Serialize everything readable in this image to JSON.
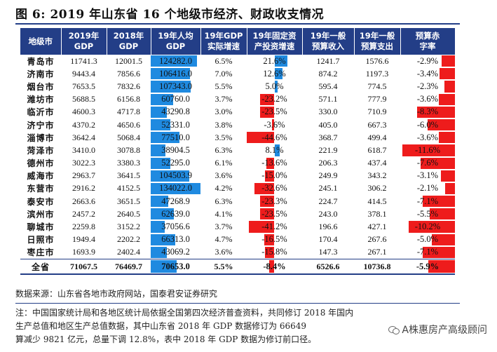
{
  "title": "图 6:  2019 年山东省 16 个地级市经济、财政收支情况",
  "headers": [
    "地级市",
    "2019年\nGDP",
    "2018年\nGDP",
    "19年人均\nGDP",
    "19年GDP\n实际增速",
    "19年固定资\n产投资增速",
    "19年一般\n预算收入",
    "19年一般\n预算支出",
    "预算赤\n字率"
  ],
  "rows": [
    {
      "city": "青岛市",
      "gdp19": "11741.3",
      "gdp18": "12001.5",
      "pc": "124282.0",
      "pc_val": 124282.0,
      "growth": "6.5%",
      "fai": "21.6%",
      "fai_val": 21.6,
      "rev": "1241.7",
      "exp": "1576.6",
      "def": "-2.9%",
      "def_val": -2.9
    },
    {
      "city": "济南市",
      "gdp19": "9443.4",
      "gdp18": "7856.6",
      "pc": "106416.0",
      "pc_val": 106416.0,
      "growth": "7.0%",
      "fai": "12.6%",
      "fai_val": 12.6,
      "rev": "874.2",
      "exp": "1197.3",
      "def": "-3.4%",
      "def_val": -3.4
    },
    {
      "city": "烟台市",
      "gdp19": "7653.5",
      "gdp18": "7832.6",
      "pc": "107343.0",
      "pc_val": 107343.0,
      "growth": "5.5%",
      "fai": "5.0%",
      "fai_val": 5.0,
      "rev": "595.4",
      "exp": "774.5",
      "def": "-2.3%",
      "def_val": -2.3
    },
    {
      "city": "潍坊市",
      "gdp19": "5688.5",
      "gdp18": "6156.8",
      "pc": "60760.0",
      "pc_val": 60760.0,
      "growth": "3.7%",
      "fai": "-23.2%",
      "fai_val": -23.2,
      "rev": "571.1",
      "exp": "777.9",
      "def": "-3.6%",
      "def_val": -3.6
    },
    {
      "city": "临沂市",
      "gdp19": "4600.3",
      "gdp18": "4717.8",
      "pc": "43290.8",
      "pc_val": 43290.8,
      "growth": "3.0%",
      "fai": "-23.5%",
      "fai_val": -23.5,
      "rev": "330.0",
      "exp": "710.9",
      "def": "-8.3%",
      "def_val": -8.3
    },
    {
      "city": "济宁市",
      "gdp19": "4370.2",
      "gdp18": "4650.6",
      "pc": "52331.0",
      "pc_val": 52331.0,
      "growth": "3.8%",
      "fai": "-3.6%",
      "fai_val": -3.6,
      "rev": "405.0",
      "exp": "667.3",
      "def": "-6.0%",
      "def_val": -6.0
    },
    {
      "city": "淄博市",
      "gdp19": "3642.4",
      "gdp18": "5068.4",
      "pc": "77510.0",
      "pc_val": 77510.0,
      "growth": "3.5%",
      "fai": "-44.6%",
      "fai_val": -44.6,
      "rev": "368.7",
      "exp": "499.4",
      "def": "-3.6%",
      "def_val": -3.6
    },
    {
      "city": "菏泽市",
      "gdp19": "3410.0",
      "gdp18": "3078.8",
      "pc": "38904.5",
      "pc_val": 38904.5,
      "growth": "6.3%",
      "fai": "8.1%",
      "fai_val": 8.1,
      "rev": "221.9",
      "exp": "618.7",
      "def": "-11.6%",
      "def_val": -11.6
    },
    {
      "city": "德州市",
      "gdp19": "3022.3",
      "gdp18": "3380.3",
      "pc": "52295.0",
      "pc_val": 52295.0,
      "growth": "6.1%",
      "fai": "-13.6%",
      "fai_val": -13.6,
      "rev": "206.3",
      "exp": "437.4",
      "def": "-7.6%",
      "def_val": -7.6
    },
    {
      "city": "威海市",
      "gdp19": "2963.7",
      "gdp18": "3641.5",
      "pc": "104503.9",
      "pc_val": 104503.9,
      "growth": "3.6%",
      "fai": "-15.0%",
      "fai_val": -15.0,
      "rev": "249.9",
      "exp": "343.2",
      "def": "-3.1%",
      "def_val": -3.1
    },
    {
      "city": "东营市",
      "gdp19": "2916.2",
      "gdp18": "4152.5",
      "pc": "134022.0",
      "pc_val": 134022.0,
      "growth": "4.2%",
      "fai": "-32.6%",
      "fai_val": -32.6,
      "rev": "245.1",
      "exp": "306.2",
      "def": "-2.1%",
      "def_val": -2.1
    },
    {
      "city": "泰安市",
      "gdp19": "2663.6",
      "gdp18": "3651.5",
      "pc": "47268.9",
      "pc_val": 47268.9,
      "growth": "6.3%",
      "fai": "-23.3%",
      "fai_val": -23.3,
      "rev": "224.7",
      "exp": "414.5",
      "def": "-7.1%",
      "def_val": -7.1
    },
    {
      "city": "滨州市",
      "gdp19": "2457.2",
      "gdp18": "2640.5",
      "pc": "62639.0",
      "pc_val": 62639.0,
      "growth": "4.1%",
      "fai": "-23.5%",
      "fai_val": -23.5,
      "rev": "243.0",
      "exp": "378.1",
      "def": "-5.5%",
      "def_val": -5.5
    },
    {
      "city": "聊城市",
      "gdp19": "2259.8",
      "gdp18": "3152.2",
      "pc": "37056.6",
      "pc_val": 37056.6,
      "growth": "3.7%",
      "fai": "-41.2%",
      "fai_val": -41.2,
      "rev": "196.6",
      "exp": "427.1",
      "def": "-10.2%",
      "def_val": -10.2
    },
    {
      "city": "日照市",
      "gdp19": "1949.4",
      "gdp18": "2202.2",
      "pc": "66313.0",
      "pc_val": 66313.0,
      "growth": "4.7%",
      "fai": "-16.5%",
      "fai_val": -16.5,
      "rev": "170.4",
      "exp": "267.6",
      "def": "-5.0%",
      "def_val": -5.0
    },
    {
      "city": "枣庄市",
      "gdp19": "1693.9",
      "gdp18": "2402.4",
      "pc": "43069.2",
      "pc_val": 43069.2,
      "growth": "3.6%",
      "fai": "-15.8%",
      "fai_val": -15.8,
      "rev": "147.3",
      "exp": "267.1",
      "def": "-7.1%",
      "def_val": -7.1
    }
  ],
  "total": {
    "city": "全省",
    "gdp19": "71067.5",
    "gdp18": "76469.7",
    "pc": "70653.0",
    "pc_val": 70653.0,
    "growth": "5.5%",
    "fai": "-8.4%",
    "fai_val": -8.4,
    "rev": "6526.6",
    "exp": "10736.8",
    "def": "-5.9%",
    "def_val": -5.9
  },
  "source": "数据来源：山东省各地市政府网站，国泰君安证券研究",
  "note_lines": [
    "注：中国国家统计局和各地区统计局依据全国第四次经济普查资料，共同修订 2018 年国内",
    "生产总值和地区生产总值数据，其中山东省 2018 年 GDP 数据修订为 66649",
    "算减少 9821 亿元，总量下调 12.8%，表中 2018 年 GDP 数据为修订前口径。"
  ],
  "watermark": "A株惠房产高级顾问",
  "colors": {
    "header_bg": "#233e87",
    "bar_blue": "#1f8ae0",
    "bar_red": "#ee1c1c"
  }
}
